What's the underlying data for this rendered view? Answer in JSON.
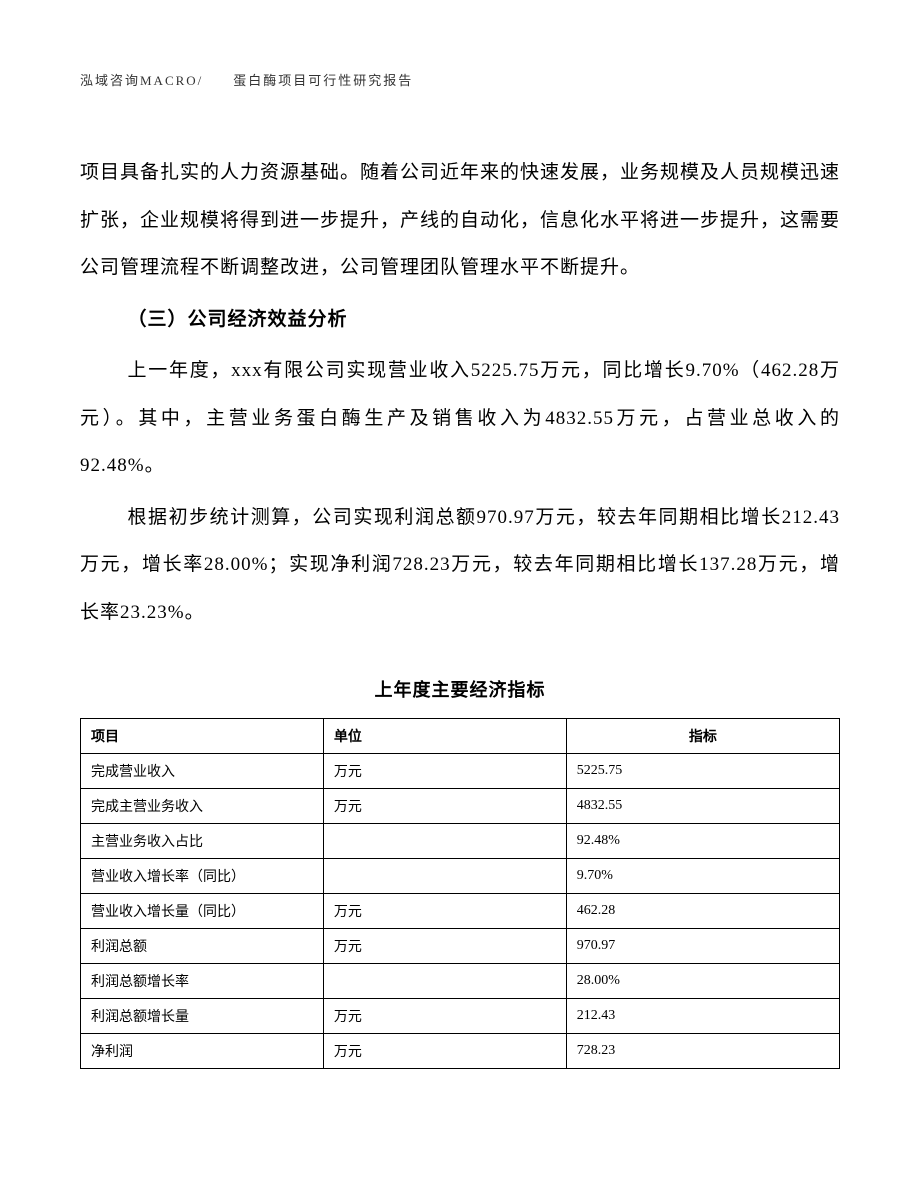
{
  "header": {
    "text": "泓域咨询MACRO/　　蛋白酶项目可行性研究报告"
  },
  "paragraphs": {
    "p1": "项目具备扎实的人力资源基础。随着公司近年来的快速发展，业务规模及人员规模迅速扩张，企业规模将得到进一步提升，产线的自动化，信息化水平将进一步提升，这需要公司管理流程不断调整改进，公司管理团队管理水平不断提升。",
    "heading": "（三）公司经济效益分析",
    "p2": "上一年度，xxx有限公司实现营业收入5225.75万元，同比增长9.70%（462.28万元）。其中，主营业务蛋白酶生产及销售收入为4832.55万元，占营业总收入的92.48%。",
    "p3": "根据初步统计测算，公司实现利润总额970.97万元，较去年同期相比增长212.43万元，增长率28.00%；实现净利润728.23万元，较去年同期相比增长137.28万元，增长率23.23%。"
  },
  "table": {
    "title": "上年度主要经济指标",
    "columns": [
      "项目",
      "单位",
      "指标"
    ],
    "rows": [
      [
        "完成营业收入",
        "万元",
        "5225.75"
      ],
      [
        "完成主营业务收入",
        "万元",
        "4832.55"
      ],
      [
        "主营业务收入占比",
        "",
        "92.48%"
      ],
      [
        "营业收入增长率（同比）",
        "",
        "9.70%"
      ],
      [
        "营业收入增长量（同比）",
        "万元",
        "462.28"
      ],
      [
        "利润总额",
        "万元",
        "970.97"
      ],
      [
        "利润总额增长率",
        "",
        "28.00%"
      ],
      [
        "利润总额增长量",
        "万元",
        "212.43"
      ],
      [
        "净利润",
        "万元",
        "728.23"
      ]
    ],
    "col_widths": [
      "32%",
      "32%",
      "36%"
    ],
    "border_color": "#000000",
    "font_size": 14,
    "header_font_weight": "bold"
  },
  "styles": {
    "body_font_size": 19,
    "body_line_height": 2.5,
    "header_font_size": 13,
    "table_title_font_size": 18,
    "background_color": "#ffffff",
    "text_color": "#000000"
  }
}
